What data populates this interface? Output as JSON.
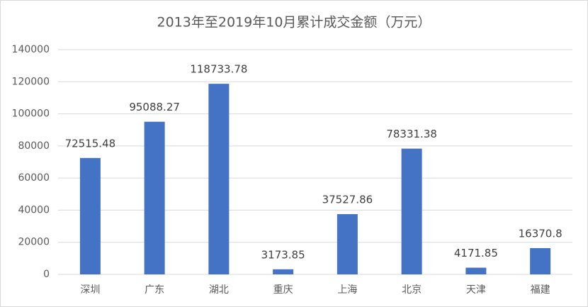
{
  "chart_data": {
    "type": "bar",
    "title": "2013年至2019年10月累计成交金额（万元）",
    "categories": [
      "深圳",
      "广东",
      "湖北",
      "重庆",
      "上海",
      "北京",
      "天津",
      "福建"
    ],
    "values": [
      72515.48,
      95088.27,
      118733.78,
      3173.85,
      37527.86,
      78331.38,
      4171.85,
      16370.8
    ],
    "color": "#4472c4",
    "ylim": [
      0,
      140000
    ],
    "yticks": [
      0,
      20000,
      40000,
      60000,
      80000,
      100000,
      120000,
      140000
    ],
    "grid": true
  }
}
